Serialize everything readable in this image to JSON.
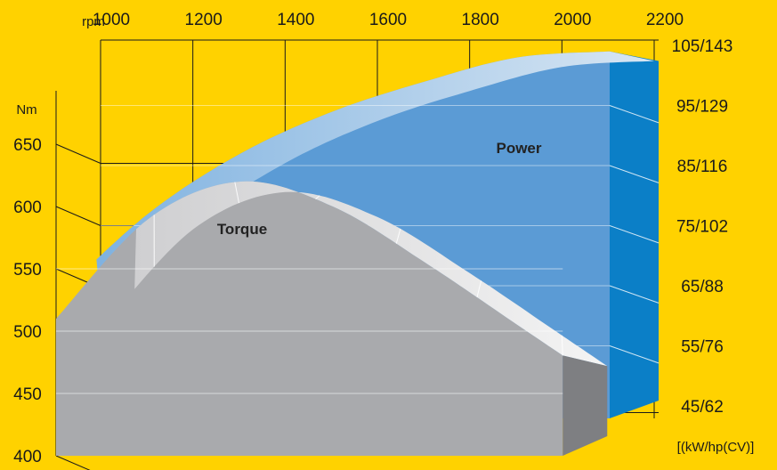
{
  "chart_data": {
    "type": "area",
    "title": "",
    "x": [
      1000,
      1200,
      1400,
      1600,
      1800,
      2000,
      2200
    ],
    "xlim": [
      1000,
      2200
    ],
    "xlabel": "rpm",
    "ylabel_left": "Nm",
    "ylim_left": [
      400,
      650
    ],
    "y_ticks_left": [
      400,
      450,
      500,
      550,
      600,
      650
    ],
    "ylabel_right": "[(kW/hp(CV)]",
    "ylim_right": [
      45,
      105
    ],
    "y_ticks_right": [
      "45/62",
      "55/76",
      "65/88",
      "75/102",
      "85/116",
      "95/129",
      "105/143"
    ],
    "grid": true,
    "legend": "none",
    "series": [
      {
        "name": "Power",
        "axis": "right",
        "color": "#5B9BD5",
        "values": [
          63,
          77,
          87,
          94,
          99,
          103,
          104
        ]
      },
      {
        "name": "Torque",
        "axis": "left",
        "color": "#A9AAAD",
        "values": [
          510,
          590,
          620,
          600,
          555,
          505,
          455
        ]
      }
    ]
  }
}
